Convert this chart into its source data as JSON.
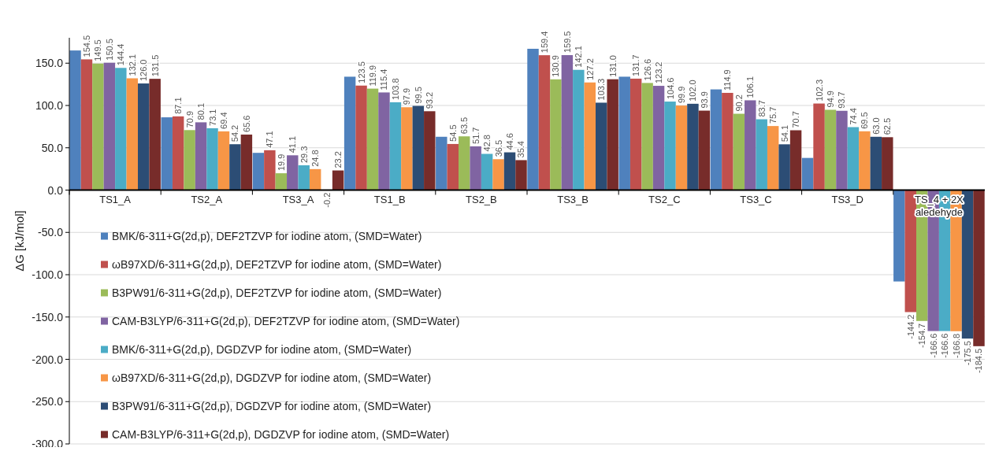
{
  "chart_data": {
    "type": "bar",
    "ylabel": "ΔG [kJ/mol]",
    "categories": [
      "TS1_A",
      "TS2_A",
      "TS3_A",
      "TS1_B",
      "TS2_B",
      "TS3_B",
      "TS2_C",
      "TS3_C",
      "TS3_D",
      "TS_4 + 2X aledehyde"
    ],
    "series": [
      {
        "name": "BMK/6-311+G(2d,p), DEF2TZVP for iodine atom, (SMD=Water)",
        "color": "#4f81bd",
        "values": [
          165,
          86,
          44,
          134,
          63,
          167,
          134,
          119,
          38,
          -108
        ],
        "value_labels": [
          null,
          null,
          null,
          null,
          null,
          null,
          null,
          null,
          null,
          null
        ]
      },
      {
        "name": "ωB97XD/6-311+G(2d,p), DEF2TZVP for iodine atom, (SMD=Water)",
        "color": "#c0504d",
        "values": [
          154.5,
          87.1,
          47.1,
          123.5,
          54.5,
          159.4,
          131.7,
          114.9,
          102.3,
          -144.2
        ],
        "value_labels": [
          "154.5",
          "87.1",
          "47.1",
          "123.5",
          "54.5",
          "159.4",
          "131.7",
          "114.9",
          "102.3",
          "-144.2"
        ]
      },
      {
        "name": "B3PW91/6-311+G(2d,p), DEF2TZVP for iodine atom, (SMD=Water)",
        "color": "#9bbb59",
        "values": [
          149.5,
          70.9,
          19.9,
          119.9,
          63.5,
          130.9,
          126.6,
          90.2,
          94.9,
          -154.7
        ],
        "value_labels": [
          "149.5",
          "70.9",
          "19.9",
          "119.9",
          "63.5",
          "130.9",
          "126.6",
          "90.2",
          "94.9",
          "-154.7"
        ]
      },
      {
        "name": "CAM-B3LYP/6-311+G(2d,p), DEF2TZVP for iodine atom, (SMD=Water)",
        "color": "#8064a2",
        "values": [
          150.5,
          80.1,
          41.1,
          115.4,
          51.7,
          159.5,
          123.2,
          106.1,
          93.7,
          -166.6
        ],
        "value_labels": [
          "150.5",
          "80.1",
          "41.1",
          "115.4",
          "51.7",
          "159.5",
          "123.2",
          "106.1",
          "93.7",
          "-166.6"
        ]
      },
      {
        "name": "BMK/6-311+G(2d,p), DGDZVP for iodine atom, (SMD=Water)",
        "color": "#4bacc6",
        "values": [
          144.4,
          73.1,
          29.3,
          103.8,
          42.8,
          142.1,
          104.6,
          83.7,
          74.4,
          -166.6
        ],
        "value_labels": [
          "144.4",
          "73.1",
          "29.3",
          "103.8",
          "42.8",
          "142.1",
          "104.6",
          "83.7",
          "74.4",
          "-166.6"
        ]
      },
      {
        "name": "ωB97XD/6-311+G(2d,p), DGDZVP for iodine atom, (SMD=Water)",
        "color": "#f79646",
        "values": [
          132.1,
          69.4,
          24.8,
          97.9,
          36.5,
          127.2,
          99.9,
          75.7,
          69.5,
          -166.8
        ],
        "value_labels": [
          "132.1",
          "69.4",
          "24.8",
          "97.9",
          "36.5",
          "127.2",
          "99.9",
          "75.7",
          "69.5",
          "-166.8"
        ]
      },
      {
        "name": "B3PW91/6-311+G(2d,p), DGDZVP for iodine atom, (SMD=Water)",
        "color": "#2c4d75",
        "values": [
          126.0,
          54.2,
          -0.2,
          99.5,
          44.6,
          103.3,
          102.0,
          54.1,
          63.0,
          -175.5
        ],
        "value_labels": [
          "126.0",
          "54.2",
          "-0.2",
          "99.5",
          "44.6",
          "103.3",
          "102.0",
          "54.1",
          "63.0",
          "-175.5"
        ]
      },
      {
        "name": "CAM-B3LYP/6-311+G(2d,p), DGDZVP for iodine atom, (SMD=Water)",
        "color": "#772c2a",
        "values": [
          131.5,
          65.6,
          23.2,
          93.2,
          35.4,
          131.0,
          93.9,
          70.7,
          62.5,
          -184.5
        ],
        "value_labels": [
          "131.5",
          "65.6",
          "23.2",
          "93.2",
          "35.4",
          "131.0",
          "93.9",
          "70.7",
          "62.5",
          "-184.5"
        ]
      }
    ],
    "ylim": [
      -300,
      180
    ],
    "yticks": [
      {
        "value": -300,
        "label": "-300.0"
      },
      {
        "value": -250,
        "label": "-250.0"
      },
      {
        "value": -200,
        "label": "-200.0"
      },
      {
        "value": -150,
        "label": "-150.0"
      },
      {
        "value": -100,
        "label": "-100.0"
      },
      {
        "value": -50,
        "label": "-50.0"
      },
      {
        "value": 0,
        "label": "0.0"
      },
      {
        "value": 50,
        "label": "50.0"
      },
      {
        "value": 100,
        "label": "100.0"
      },
      {
        "value": 150,
        "label": "150.0"
      }
    ],
    "grid": "y",
    "legend": "bottom left"
  }
}
